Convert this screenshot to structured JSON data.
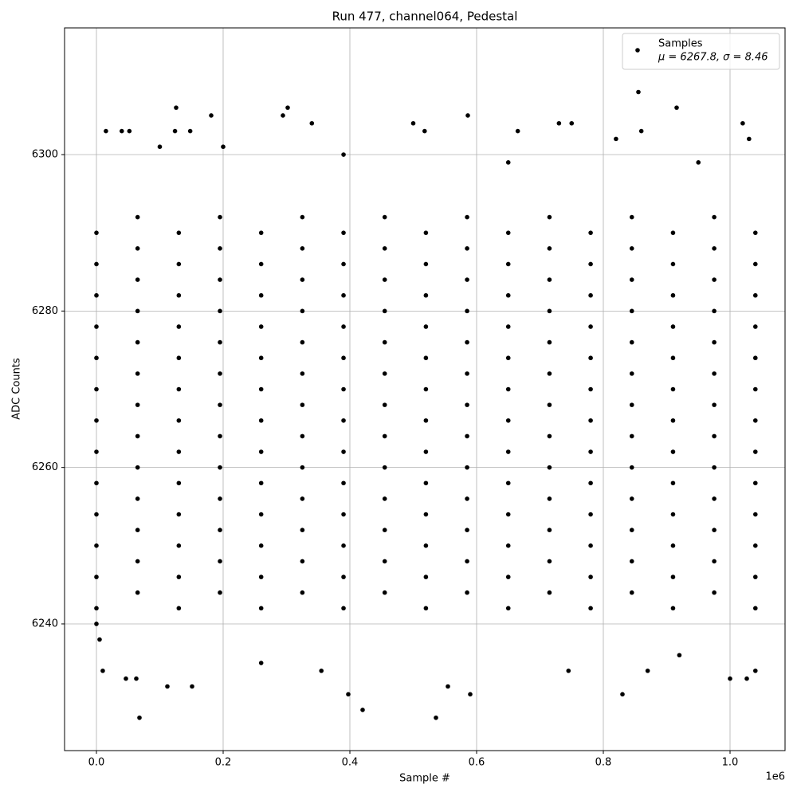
{
  "chart_data": {
    "type": "scatter",
    "title": "Run 477, channel064, Pedestal",
    "x_label": "Sample #",
    "y_label": "ADC Counts",
    "x_offset_label": "1e6",
    "xlim": [
      -50300,
      1086800
    ],
    "ylim": [
      6223.8,
      6316.2
    ],
    "xticks": [
      {
        "value": 0,
        "label": "0.0"
      },
      {
        "value": 200000,
        "label": "0.2"
      },
      {
        "value": 400000,
        "label": "0.4"
      },
      {
        "value": 600000,
        "label": "0.6"
      },
      {
        "value": 800000,
        "label": "0.8"
      },
      {
        "value": 1000000,
        "label": "1.0"
      }
    ],
    "yticks": [
      6240,
      6260,
      6280,
      6300
    ],
    "grid": true,
    "legend": "upper right",
    "legend_note": "μ = 6267.8, σ = 8.46",
    "x": [
      0,
      130000,
      260000,
      390000,
      520000,
      650000,
      780000,
      910000,
      1040000,
      65000,
      195000,
      325000,
      455000,
      585000,
      715000,
      845000,
      975000,
      0,
      130000,
      260000,
      390000,
      520000,
      650000,
      780000,
      910000,
      1040000,
      65000,
      195000,
      325000,
      455000,
      585000,
      715000,
      845000,
      975000,
      0,
      130000,
      260000,
      390000,
      520000,
      650000,
      780000,
      910000,
      1040000,
      65000,
      195000,
      325000,
      455000,
      585000,
      715000,
      845000,
      975000,
      0,
      130000,
      260000,
      390000,
      520000,
      650000,
      780000,
      910000,
      1040000,
      65000,
      195000,
      325000,
      455000,
      585000,
      715000,
      845000,
      975000,
      0,
      130000,
      260000,
      390000,
      520000,
      650000,
      780000,
      910000,
      1040000,
      65000,
      195000,
      325000,
      455000,
      585000,
      715000,
      845000,
      975000,
      0,
      130000,
      260000,
      390000,
      520000,
      650000,
      780000,
      910000,
      1040000,
      65000,
      195000,
      325000,
      455000,
      585000,
      715000,
      845000,
      975000,
      0,
      130000,
      260000,
      390000,
      520000,
      650000,
      780000,
      910000,
      1040000,
      65000,
      195000,
      325000,
      455000,
      585000,
      715000,
      845000,
      975000,
      0,
      130000,
      260000,
      390000,
      520000,
      650000,
      780000,
      910000,
      1040000,
      65000,
      195000,
      325000,
      455000,
      585000,
      715000,
      845000,
      975000,
      0,
      130000,
      260000,
      390000,
      520000,
      650000,
      780000,
      910000,
      1040000,
      65000,
      195000,
      325000,
      455000,
      585000,
      715000,
      845000,
      975000,
      0,
      130000,
      260000,
      390000,
      520000,
      650000,
      780000,
      910000,
      1040000,
      65000,
      195000,
      325000,
      455000,
      585000,
      715000,
      845000,
      975000,
      0,
      130000,
      260000,
      390000,
      520000,
      650000,
      780000,
      910000,
      1040000,
      65000,
      195000,
      325000,
      455000,
      585000,
      715000,
      845000,
      975000,
      0,
      130000,
      260000,
      390000,
      520000,
      650000,
      780000,
      910000,
      1040000,
      65000,
      195000,
      325000,
      455000,
      585000,
      715000,
      845000,
      975000,
      0,
      130000,
      260000,
      390000,
      520000,
      650000,
      780000,
      910000,
      1040000,
      65000,
      195000,
      325000,
      455000,
      585000,
      715000,
      845000,
      975000,
      67925,
      535850,
      420126,
      830189,
      397484,
      589937,
      111950,
      150943,
      554717,
      1000000,
      1026415,
      46540,
      62893,
      1040000,
      10000,
      355000,
      745000,
      870000,
      0,
      5000,
      920000,
      260000,
      855346,
      125786,
      301887,
      915723,
      181132,
      294340,
      586164,
      500000,
      340000,
      730000,
      750000,
      1020000,
      15000,
      40000,
      52000,
      124000,
      148000,
      518000,
      665000,
      860000,
      820000,
      1030000,
      100000,
      200000,
      390000,
      650000,
      950000
    ],
    "series": [
      {
        "name": "Samples",
        "color": "#000000",
        "values": [
          6242,
          6242,
          6242,
          6242,
          6242,
          6242,
          6242,
          6242,
          6242,
          6244,
          6244,
          6244,
          6244,
          6244,
          6244,
          6244,
          6244,
          6246,
          6246,
          6246,
          6246,
          6246,
          6246,
          6246,
          6246,
          6246,
          6248,
          6248,
          6248,
          6248,
          6248,
          6248,
          6248,
          6248,
          6250,
          6250,
          6250,
          6250,
          6250,
          6250,
          6250,
          6250,
          6250,
          6252,
          6252,
          6252,
          6252,
          6252,
          6252,
          6252,
          6252,
          6254,
          6254,
          6254,
          6254,
          6254,
          6254,
          6254,
          6254,
          6254,
          6256,
          6256,
          6256,
          6256,
          6256,
          6256,
          6256,
          6256,
          6258,
          6258,
          6258,
          6258,
          6258,
          6258,
          6258,
          6258,
          6258,
          6260,
          6260,
          6260,
          6260,
          6260,
          6260,
          6260,
          6260,
          6262,
          6262,
          6262,
          6262,
          6262,
          6262,
          6262,
          6262,
          6262,
          6264,
          6264,
          6264,
          6264,
          6264,
          6264,
          6264,
          6264,
          6266,
          6266,
          6266,
          6266,
          6266,
          6266,
          6266,
          6266,
          6266,
          6268,
          6268,
          6268,
          6268,
          6268,
          6268,
          6268,
          6268,
          6270,
          6270,
          6270,
          6270,
          6270,
          6270,
          6270,
          6270,
          6270,
          6272,
          6272,
          6272,
          6272,
          6272,
          6272,
          6272,
          6272,
          6274,
          6274,
          6274,
          6274,
          6274,
          6274,
          6274,
          6274,
          6274,
          6276,
          6276,
          6276,
          6276,
          6276,
          6276,
          6276,
          6276,
          6278,
          6278,
          6278,
          6278,
          6278,
          6278,
          6278,
          6278,
          6278,
          6280,
          6280,
          6280,
          6280,
          6280,
          6280,
          6280,
          6280,
          6282,
          6282,
          6282,
          6282,
          6282,
          6282,
          6282,
          6282,
          6282,
          6284,
          6284,
          6284,
          6284,
          6284,
          6284,
          6284,
          6284,
          6286,
          6286,
          6286,
          6286,
          6286,
          6286,
          6286,
          6286,
          6286,
          6288,
          6288,
          6288,
          6288,
          6288,
          6288,
          6288,
          6288,
          6290,
          6290,
          6290,
          6290,
          6290,
          6290,
          6290,
          6290,
          6290,
          6292,
          6292,
          6292,
          6292,
          6292,
          6292,
          6292,
          6292,
          6228,
          6228,
          6229,
          6231,
          6231,
          6231,
          6232,
          6232,
          6232,
          6233,
          6233,
          6233,
          6233,
          6234,
          6234,
          6234,
          6234,
          6234,
          6240,
          6238,
          6236,
          6235,
          6308,
          6306,
          6306,
          6306,
          6305,
          6305,
          6305,
          6304,
          6304,
          6304,
          6304,
          6304,
          6303,
          6303,
          6303,
          6303,
          6303,
          6303,
          6303,
          6303,
          6302,
          6302,
          6301,
          6301,
          6300,
          6299,
          6299
        ]
      }
    ]
  }
}
